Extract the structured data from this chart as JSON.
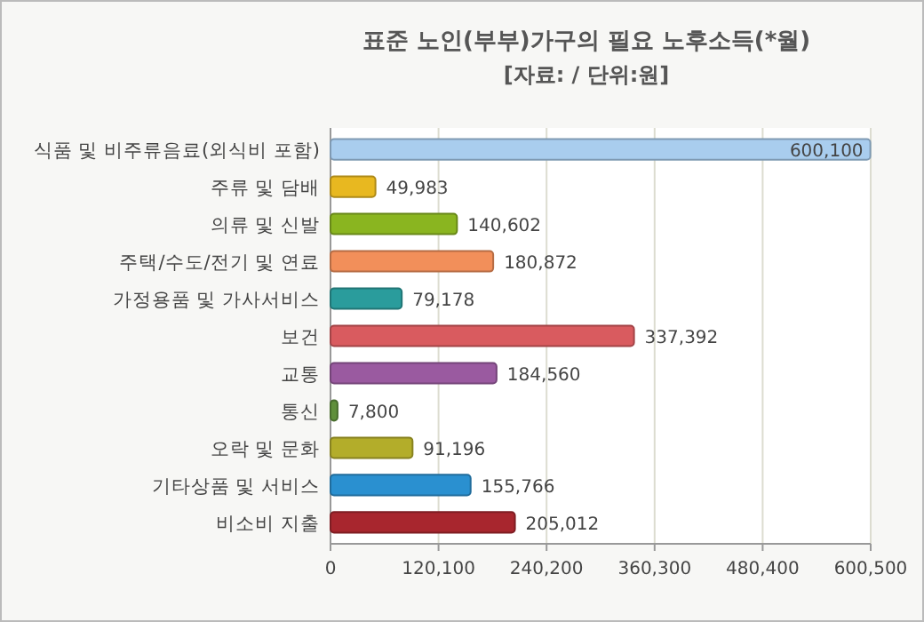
{
  "chart_data": {
    "type": "bar",
    "orientation": "horizontal",
    "title": "표준 노인(부부)가구의 필요 노후소득(*월)",
    "subtitle": "[자료: / 단위:원]",
    "categories": [
      "식품 및 비주류음료(외식비 포함)",
      "주류 및 담배",
      "의류 및 신발",
      "주택/수도/전기 및 연료",
      "가정용품 및 가사서비스",
      "보건",
      "교통",
      "통신",
      "오락 및 문화",
      "기타상품 및 서비스",
      "비소비 지출"
    ],
    "values": [
      600100,
      49983,
      140602,
      180872,
      79178,
      337392,
      184560,
      7800,
      91196,
      155766,
      205012
    ],
    "colors": [
      "#a9cdee",
      "#e8b820",
      "#8ab520",
      "#f28f5a",
      "#2a9c9c",
      "#d95b5f",
      "#9a5aa0",
      "#5f8f3a",
      "#b3ad2a",
      "#2a90d0",
      "#a8262e"
    ],
    "value_labels": [
      "600,100",
      "49,983",
      "140,602",
      "180,872",
      "79,178",
      "337,392",
      "184,560",
      "7,800",
      "91,196",
      "155,766",
      "205,012"
    ],
    "xlim": [
      0,
      600500
    ],
    "xticks": [
      0,
      {
        "value": 120100,
        "label": "120,100"
      },
      {
        "value": 240200,
        "label": "240,200"
      },
      {
        "value": 360300,
        "label": "360,300"
      },
      {
        "value": 480400,
        "label": "480,400"
      },
      {
        "value": 600500,
        "label": "600,500"
      }
    ],
    "grid": "x"
  }
}
